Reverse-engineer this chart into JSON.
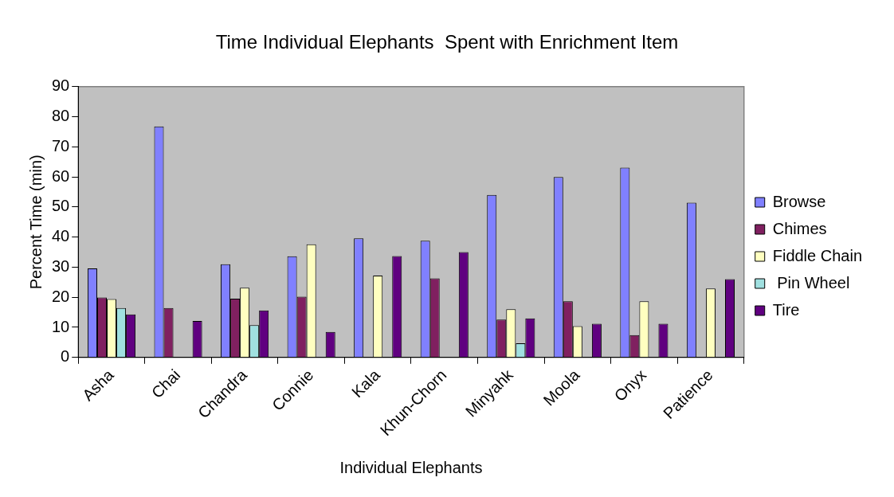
{
  "chart_data": {
    "type": "bar",
    "title": "Time Individual Elephants  Spent with Enrichment Item",
    "xlabel": "Individual Elephants",
    "ylabel": "Percent Time (min)",
    "categories": [
      "Asha",
      "Chai",
      "Chandra",
      "Connie",
      "Kala",
      "Khun-Chorn",
      "Minyahk",
      "Moola",
      "Onyx",
      "Patience"
    ],
    "series": [
      {
        "name": "Browse",
        "color": "#8080ff",
        "values": [
          29.6,
          76.8,
          31,
          33.6,
          39.6,
          38.8,
          54,
          60,
          63.1,
          51.4
        ]
      },
      {
        "name": "Chimes",
        "color": "#802060",
        "values": [
          19.9,
          16.4,
          19.5,
          20.2,
          null,
          26.3,
          12.6,
          18.7,
          7.4,
          null
        ]
      },
      {
        "name": "Fiddle Chain",
        "color": "#ffffc0",
        "values": [
          19.4,
          null,
          23.2,
          37.6,
          27.2,
          null,
          16,
          10.4,
          18.7,
          22.9
        ]
      },
      {
        "name": " Pin Wheel",
        "color": "#a0e0e0",
        "values": [
          16.4,
          null,
          10.7,
          null,
          null,
          null,
          4.7,
          null,
          null,
          null
        ]
      },
      {
        "name": "Tire",
        "color": "#600080",
        "values": [
          14.3,
          12.1,
          15.6,
          8.5,
          33.7,
          35,
          13,
          11.2,
          11.2,
          26
        ]
      }
    ],
    "ylim": [
      0,
      90
    ],
    "yticks": [
      0,
      10,
      20,
      30,
      40,
      50,
      60,
      70,
      80,
      90
    ],
    "grid": false,
    "legend": "right"
  }
}
